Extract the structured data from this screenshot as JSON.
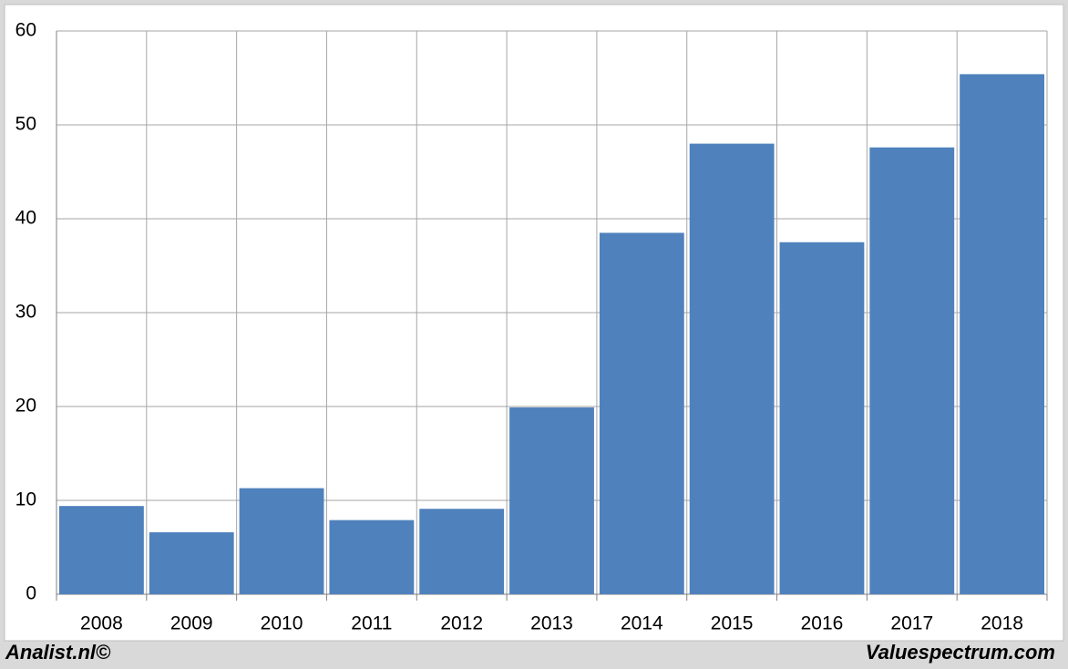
{
  "chart_data": {
    "type": "bar",
    "categories": [
      "2008",
      "2009",
      "2010",
      "2011",
      "2012",
      "2013",
      "2014",
      "2015",
      "2016",
      "2017",
      "2018"
    ],
    "values": [
      9.4,
      6.6,
      11.3,
      7.9,
      9.1,
      19.9,
      38.5,
      48.0,
      37.5,
      47.6,
      55.4
    ],
    "color": "#4f81bd",
    "ylim": [
      0,
      60
    ],
    "yticks": [
      0,
      10,
      20,
      30,
      40,
      50,
      60
    ],
    "grid": true,
    "footer_left": "Analist.nl©",
    "footer_right": "Valuespectrum.com"
  }
}
